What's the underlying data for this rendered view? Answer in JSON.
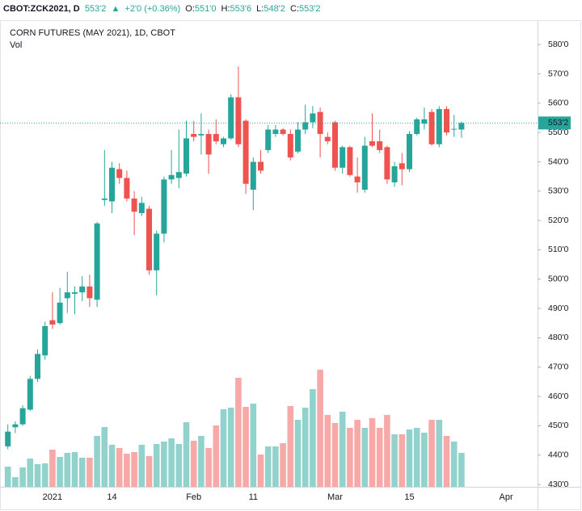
{
  "header": {
    "symbol": "CBOT:ZCK2021, D",
    "last": "553'2",
    "arrow": "▲",
    "change": "+2'0 (+0.36%)",
    "o_label": "O:",
    "o": "551'0",
    "h_label": "H:",
    "h": "553'6",
    "l_label": "L:",
    "l": "548'2",
    "c_label": "C:",
    "c": "553'2"
  },
  "chart_data": {
    "type": "candlestick",
    "title": "CORN FUTURES (MAY 2021), 1D, CBOT",
    "volume_label": "Vol",
    "categories": [
      null,
      null,
      null,
      null,
      null,
      null,
      "2021",
      null,
      null,
      null,
      null,
      null,
      null,
      null,
      "14",
      null,
      null,
      null,
      null,
      null,
      null,
      null,
      null,
      null,
      null,
      "Feb",
      null,
      null,
      null,
      null,
      null,
      null,
      null,
      "11",
      null,
      null,
      null,
      null,
      null,
      null,
      null,
      null,
      null,
      null,
      "Mar",
      null,
      null,
      null,
      null,
      null,
      null,
      null,
      null,
      null,
      "15",
      null,
      null,
      null,
      null,
      null,
      null,
      null,
      null,
      null,
      null,
      null,
      null,
      "Apr"
    ],
    "open": [
      443,
      449.5,
      450.5,
      455.5,
      466,
      474,
      486,
      485,
      493.5,
      495,
      495.5,
      497.5,
      493,
      527,
      526.5,
      537.5,
      534.5,
      527.5,
      522.5,
      524,
      503,
      515.5,
      534,
      534.5,
      536,
      549.5,
      549,
      549.5,
      549.5,
      546,
      548,
      562,
      554,
      530.5,
      540,
      544,
      549.5,
      551,
      549.5,
      543.5,
      551,
      553.5,
      557,
      548.5,
      553.5,
      538,
      545,
      535,
      530.5,
      547,
      547,
      545,
      533,
      539.5,
      537.5,
      549.5,
      553,
      557,
      546,
      558,
      551,
      551,
      null,
      null,
      null,
      null,
      null,
      null
    ],
    "high": [
      450.5,
      451.5,
      457,
      467,
      476,
      485.5,
      495.5,
      497,
      502.5,
      497.5,
      501,
      501.5,
      519.5,
      544,
      540,
      539.5,
      537,
      530,
      528,
      525,
      516.5,
      535,
      544,
      551,
      554,
      554,
      556.5,
      551,
      554.5,
      548.5,
      563,
      572.5,
      554.5,
      541.5,
      544,
      552.5,
      552.5,
      551.5,
      551,
      553.5,
      559.5,
      559,
      558.5,
      550,
      554,
      545.5,
      545.5,
      541.5,
      548.5,
      556.5,
      551,
      545.5,
      540,
      543,
      550.5,
      555,
      558.5,
      558,
      559,
      559,
      556,
      553.75,
      null,
      null,
      null,
      null,
      null,
      null
    ],
    "low": [
      442,
      447.5,
      450,
      455,
      465,
      472.5,
      483,
      484.5,
      488.5,
      488,
      492.5,
      490.5,
      490.5,
      525,
      522.5,
      532.5,
      526.5,
      515,
      521.5,
      501.5,
      494.5,
      512.5,
      532.5,
      531,
      535,
      547,
      542.5,
      536,
      546,
      545,
      547.5,
      545,
      529,
      523.5,
      536,
      543,
      548.5,
      549,
      540.5,
      543,
      549.5,
      551.5,
      541.5,
      546,
      537,
      536,
      535,
      529.5,
      529.5,
      545,
      543,
      532.5,
      531.5,
      532,
      536.5,
      549,
      551,
      545.5,
      545,
      549,
      548.5,
      548.25,
      null,
      null,
      null,
      null,
      null,
      null
    ],
    "close": [
      448,
      450.5,
      456,
      466,
      474.5,
      484,
      484.5,
      492,
      495.5,
      495.5,
      497.5,
      493.5,
      519,
      527.5,
      538,
      534.5,
      527.5,
      523,
      526,
      503,
      515.5,
      534,
      535.5,
      536.5,
      548,
      548.5,
      549.5,
      542.5,
      547,
      548,
      562,
      546,
      532.5,
      540,
      537,
      551,
      551,
      549.5,
      541.5,
      551,
      553.5,
      556.5,
      549.5,
      547,
      538,
      545,
      535.5,
      533,
      545.5,
      545.5,
      544,
      534,
      538.5,
      537.5,
      549.5,
      554.5,
      554.5,
      546,
      558,
      550,
      551.25,
      553.25,
      null,
      null,
      null,
      null,
      null,
      null
    ],
    "volume": [
      25,
      12,
      24,
      35,
      28,
      29,
      46,
      37,
      42,
      43,
      36,
      36,
      63,
      74,
      52,
      48,
      41,
      43,
      52,
      38,
      53,
      56,
      60,
      53,
      80,
      57,
      63,
      48,
      76,
      96,
      98,
      135,
      99,
      103,
      40,
      50,
      50,
      54,
      100,
      83,
      98,
      121,
      145,
      89,
      79,
      93,
      73,
      83,
      73,
      85,
      73,
      89,
      65,
      65,
      71,
      73,
      67,
      83,
      83,
      63,
      56,
      42,
      null,
      null,
      null,
      null,
      null,
      null
    ],
    "last_price_label": "553'2",
    "ylim": [
      429.2,
      588.3
    ],
    "yticks": [
      {
        "value": 430,
        "label": "430'0"
      },
      {
        "value": 440,
        "label": "440'0"
      },
      {
        "value": 450,
        "label": "450'0"
      },
      {
        "value": 460,
        "label": "460'0"
      },
      {
        "value": 470,
        "label": "470'0"
      },
      {
        "value": 480,
        "label": "480'0"
      },
      {
        "value": 490,
        "label": "490'0"
      },
      {
        "value": 500,
        "label": "500'0"
      },
      {
        "value": 510,
        "label": "510'0"
      },
      {
        "value": 520,
        "label": "520'0"
      },
      {
        "value": 530,
        "label": "530'0"
      },
      {
        "value": 540,
        "label": "540'0"
      },
      {
        "value": 550,
        "label": "550'0"
      },
      {
        "value": 560,
        "label": "560'0"
      },
      {
        "value": 570,
        "label": "570'0"
      },
      {
        "value": 580,
        "label": "580'0"
      }
    ],
    "up_color": "#26a69a",
    "down_color": "#ef5350"
  }
}
